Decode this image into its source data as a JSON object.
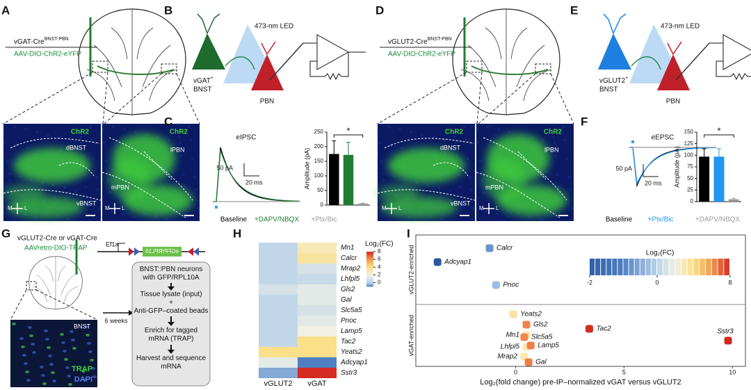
{
  "panels": {
    "A": {
      "letter": "A",
      "line_name": "vGAT-Cre",
      "line_sup": "BNST-PBN",
      "virus": "AAV-DIO-ChR2-eYFP",
      "left_label": "ChR2",
      "left_regions": [
        "dBNST",
        "vBNST"
      ],
      "right_label": "ChR2",
      "right_regions": [
        "lPBN",
        "mPBN"
      ],
      "medial": "M",
      "lateral": "L"
    },
    "B": {
      "letter": "B",
      "light": "473-nm LED",
      "source_cell": "vGAT",
      "source_sup": "+",
      "source_region": "BNST",
      "target": "PBN"
    },
    "C": {
      "letter": "C",
      "trace_title": "eIPSC",
      "scale_y": "50 pA",
      "scale_x": "20 ms"
    },
    "D": {
      "letter": "D",
      "line_name": "vGLUT2-Cre",
      "line_sup": "BNST-PBN",
      "virus": "AAV-DIO-ChR2-eYFP",
      "left_label": "ChR2",
      "left_regions": [
        "dBNST",
        "vBNST"
      ],
      "right_label": "ChR2",
      "right_regions": [
        "lPBN",
        "mPBN"
      ],
      "medial": "M",
      "lateral": "L"
    },
    "E": {
      "letter": "E",
      "light": "473-nm LED",
      "source_cell": "vGLUT2",
      "source_sup": "+",
      "source_region": "BNST",
      "target": "PBN"
    },
    "F": {
      "letter": "F",
      "trace_title": "eEPSC",
      "scale_y": "50 pA",
      "scale_x": "20 ms"
    },
    "G": {
      "letter": "G",
      "mouse_lines": "vGLUT2-Cre or vGAT-Cre",
      "virus": "AAVretro-DIO-TRAP",
      "promoter": "Ef1a",
      "transgene": "eGFP/RPL10",
      "image_region": "BNST",
      "stain_1": "TRAP",
      "stain_2": "DAPI",
      "interval": "6 weeks",
      "steps": [
        "BNST::PBN neurons with GFP/RPL10A",
        "Tissue lysate (input)",
        "+",
        "Anti-GFP–coated beads",
        "Enrich for tagged mRNA (TRAP)",
        "Harvest and sequence mRNA"
      ]
    },
    "H": {
      "letter": "H"
    },
    "I": {
      "letter": "I"
    }
  },
  "chart_data": [
    {
      "type": "bar",
      "categories": [
        "Baseline",
        "+DAPV/NBQX",
        "+Ptx/Bic"
      ],
      "colors": [
        "#000000",
        "#1e7d32",
        "#999999"
      ],
      "values": [
        175,
        172,
        5
      ],
      "errors": [
        45,
        43,
        2
      ],
      "ylabel": "Amplitude (pA)",
      "ylim": [
        0,
        250
      ],
      "yticks": [
        0,
        50,
        100,
        150,
        200,
        250
      ],
      "significance": "*"
    },
    {
      "type": "bar",
      "categories": [
        "Baseline",
        "+Ptx/Bic",
        "+DAPV/NBQX"
      ],
      "colors": [
        "#000000",
        "#2196f3",
        "#999999"
      ],
      "values": [
        97,
        97,
        5
      ],
      "errors": [
        17,
        17,
        2
      ],
      "ylabel": "Amplitude (pA)",
      "ylim": [
        0,
        150
      ],
      "yticks": [
        0,
        25,
        50,
        75,
        100,
        125,
        150
      ],
      "significance": "*"
    },
    {
      "type": "heatmap",
      "rows": [
        "Mn1",
        "Calcr",
        "Mrap2",
        "Lhfpl5",
        "Gls2",
        "Gal",
        "Slc5a5",
        "Pnoc",
        "Lamp5",
        "Tac2",
        "Yeats2",
        "Adcyap1",
        "Sstr3"
      ],
      "columns": [
        "vGLUT2",
        "vGAT"
      ],
      "values": [
        [
          0.3,
          3
        ],
        [
          0.3,
          3.5
        ],
        [
          0.3,
          1
        ],
        [
          0.3,
          0.5
        ],
        [
          1,
          1.5
        ],
        [
          0.3,
          1.5
        ],
        [
          0.3,
          1
        ],
        [
          0.3,
          1.5
        ],
        [
          0.3,
          2
        ],
        [
          0.3,
          4
        ],
        [
          4,
          4
        ],
        [
          1.5,
          -1
        ],
        [
          -0.5,
          8
        ]
      ],
      "colorbar_label": "Log₂(FC)",
      "clim": [
        -1,
        8
      ],
      "colorbar_ticks": [
        0,
        2,
        4,
        6,
        8
      ]
    },
    {
      "type": "scatter",
      "series": [
        {
          "name": "vGLUT2-enriched",
          "labels": [
            "Calcr",
            "Adcyap1",
            "Pnoc"
          ],
          "x": [
            -1.2,
            -3.6,
            -0.9
          ],
          "colors": [
            "#6a93c8",
            "#2d57a0",
            "#9dbde0"
          ]
        },
        {
          "name": "vGAT-enriched",
          "labels": [
            "Yeats2",
            "Gls2",
            "Tac2",
            "Mn1",
            "Slc5a5",
            "Sstr3",
            "Lhfpl5",
            "Lamp5",
            "Mrap2",
            "Gal"
          ],
          "x": [
            -0.1,
            0.5,
            3.4,
            0.5,
            0.4,
            9.8,
            0.5,
            0.7,
            0.4,
            0.6
          ],
          "colors": [
            "#fbe2a0",
            "#f0834a",
            "#cf2f22",
            "#fde4a8",
            "#f08a50",
            "#d0281e",
            "#fde7ad",
            "#ee7e48",
            "#fde6ad",
            "#ee7d47"
          ]
        }
      ],
      "xlabel": "Log₂(fold change) pre-IP–normalized vGAT versus vGLUT2",
      "xlim": [
        -4.6,
        10.6
      ],
      "xticks": [
        0,
        5,
        10
      ],
      "colorbar_label": "Log₂(FC)",
      "colorbar_lim": [
        -2,
        8
      ],
      "colorbar_ticks": [
        -2,
        0,
        8
      ]
    }
  ]
}
